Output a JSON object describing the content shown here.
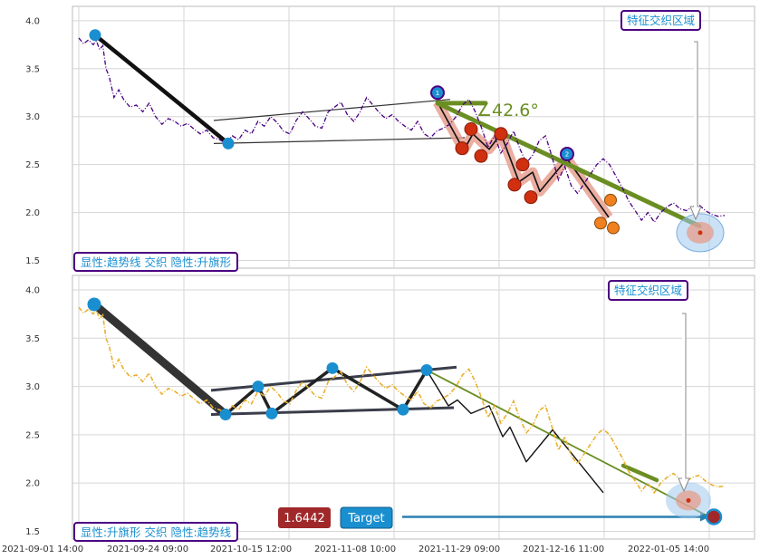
{
  "chart_data": [
    {
      "type": "line",
      "panel": "top",
      "ylim": [
        1.42,
        4.15
      ],
      "yticks": [
        1.5,
        2.0,
        2.5,
        3.0,
        3.5,
        4.0
      ],
      "ytick_labels": [
        "1.5",
        "2.0",
        "2.5",
        "3.0",
        "3.5",
        "4.0"
      ],
      "grid": true,
      "series_color": "#4b0082",
      "price": [
        [
          0,
          3.82
        ],
        [
          3,
          3.76
        ],
        [
          6,
          3.8
        ],
        [
          9,
          3.75
        ],
        [
          11,
          3.79
        ],
        [
          13,
          3.7
        ],
        [
          15,
          3.74
        ],
        [
          17,
          3.5
        ],
        [
          19,
          3.42
        ],
        [
          22,
          3.2
        ],
        [
          25,
          3.28
        ],
        [
          28,
          3.18
        ],
        [
          32,
          3.1
        ],
        [
          36,
          3.12
        ],
        [
          40,
          3.05
        ],
        [
          44,
          3.14
        ],
        [
          48,
          3.0
        ],
        [
          52,
          2.92
        ],
        [
          56,
          2.98
        ],
        [
          60,
          2.95
        ],
        [
          64,
          2.9
        ],
        [
          68,
          2.93
        ],
        [
          72,
          2.87
        ],
        [
          76,
          2.82
        ],
        [
          80,
          2.86
        ],
        [
          84,
          2.78
        ],
        [
          88,
          2.76
        ],
        [
          92,
          2.72
        ],
        [
          96,
          2.8
        ],
        [
          100,
          2.76
        ],
        [
          104,
          2.86
        ],
        [
          108,
          2.82
        ],
        [
          112,
          2.95
        ],
        [
          116,
          2.9
        ],
        [
          120,
          3.0
        ],
        [
          124,
          2.94
        ],
        [
          128,
          2.85
        ],
        [
          132,
          2.82
        ],
        [
          136,
          2.96
        ],
        [
          140,
          3.05
        ],
        [
          144,
          2.98
        ],
        [
          148,
          2.9
        ],
        [
          152,
          2.88
        ],
        [
          156,
          3.05
        ],
        [
          160,
          3.1
        ],
        [
          164,
          3.15
        ],
        [
          168,
          3.02
        ],
        [
          172,
          2.95
        ],
        [
          176,
          3.05
        ],
        [
          180,
          3.2
        ],
        [
          184,
          3.12
        ],
        [
          188,
          3.04
        ],
        [
          192,
          2.98
        ],
        [
          196,
          3.02
        ],
        [
          200,
          2.95
        ],
        [
          204,
          2.9
        ],
        [
          208,
          2.86
        ],
        [
          212,
          2.95
        ],
        [
          216,
          2.82
        ],
        [
          220,
          2.78
        ],
        [
          224,
          2.85
        ],
        [
          228,
          2.88
        ],
        [
          232,
          2.92
        ],
        [
          236,
          3.0
        ],
        [
          240,
          3.12
        ],
        [
          244,
          3.18
        ],
        [
          248,
          3.05
        ],
        [
          252,
          2.88
        ],
        [
          256,
          2.68
        ],
        [
          260,
          2.8
        ],
        [
          264,
          2.62
        ],
        [
          268,
          2.72
        ],
        [
          272,
          2.85
        ],
        [
          276,
          2.66
        ],
        [
          280,
          2.52
        ],
        [
          284,
          2.6
        ],
        [
          288,
          2.75
        ],
        [
          292,
          2.8
        ],
        [
          296,
          2.58
        ],
        [
          300,
          2.34
        ],
        [
          304,
          2.48
        ],
        [
          308,
          2.28
        ],
        [
          312,
          2.2
        ],
        [
          316,
          2.3
        ],
        [
          320,
          2.4
        ],
        [
          324,
          2.5
        ],
        [
          328,
          2.56
        ],
        [
          332,
          2.5
        ],
        [
          336,
          2.38
        ],
        [
          340,
          2.26
        ],
        [
          344,
          2.12
        ],
        [
          348,
          2.02
        ],
        [
          352,
          1.92
        ],
        [
          356,
          2.0
        ],
        [
          360,
          1.9
        ],
        [
          364,
          2.0
        ],
        [
          368,
          2.06
        ],
        [
          372,
          2.1
        ],
        [
          376,
          2.04
        ],
        [
          380,
          2.02
        ],
        [
          384,
          2.06
        ],
        [
          388,
          2.08
        ],
        [
          392,
          2.02
        ],
        [
          396,
          1.98
        ],
        [
          400,
          1.96
        ],
        [
          404,
          1.97
        ]
      ]
    },
    {
      "type": "line",
      "panel": "bottom",
      "ylim": [
        1.42,
        4.15
      ],
      "yticks": [
        1.5,
        2.0,
        2.5,
        3.0,
        3.5,
        4.0
      ],
      "ytick_labels": [
        "1.5",
        "2.0",
        "2.5",
        "3.0",
        "3.5",
        "4.0"
      ],
      "grid": true,
      "series_color": "#e8b030",
      "x_tick_labels": [
        "2021-09-01 14:00",
        "2021-09-24 09:00",
        "2021-10-15 12:00",
        "2021-11-08 10:00",
        "2021-11-29 09:00",
        "2021-12-16 11:00",
        "2022-01-05 14:00"
      ],
      "price": [
        [
          0,
          3.82
        ],
        [
          3,
          3.76
        ],
        [
          6,
          3.8
        ],
        [
          9,
          3.75
        ],
        [
          11,
          3.79
        ],
        [
          13,
          3.7
        ],
        [
          15,
          3.74
        ],
        [
          17,
          3.5
        ],
        [
          19,
          3.42
        ],
        [
          22,
          3.2
        ],
        [
          25,
          3.28
        ],
        [
          28,
          3.18
        ],
        [
          32,
          3.1
        ],
        [
          36,
          3.12
        ],
        [
          40,
          3.05
        ],
        [
          44,
          3.14
        ],
        [
          48,
          3.0
        ],
        [
          52,
          2.92
        ],
        [
          56,
          2.98
        ],
        [
          60,
          2.95
        ],
        [
          64,
          2.9
        ],
        [
          68,
          2.93
        ],
        [
          72,
          2.87
        ],
        [
          76,
          2.82
        ],
        [
          80,
          2.86
        ],
        [
          84,
          2.78
        ],
        [
          88,
          2.76
        ],
        [
          92,
          2.72
        ],
        [
          96,
          2.8
        ],
        [
          100,
          2.76
        ],
        [
          104,
          2.86
        ],
        [
          108,
          2.82
        ],
        [
          112,
          2.95
        ],
        [
          116,
          2.9
        ],
        [
          120,
          3.0
        ],
        [
          124,
          2.94
        ],
        [
          128,
          2.85
        ],
        [
          132,
          2.82
        ],
        [
          136,
          2.96
        ],
        [
          140,
          3.05
        ],
        [
          144,
          2.98
        ],
        [
          148,
          2.9
        ],
        [
          152,
          2.88
        ],
        [
          156,
          3.05
        ],
        [
          160,
          3.1
        ],
        [
          164,
          3.15
        ],
        [
          168,
          3.02
        ],
        [
          172,
          2.95
        ],
        [
          176,
          3.05
        ],
        [
          180,
          3.2
        ],
        [
          184,
          3.12
        ],
        [
          188,
          3.04
        ],
        [
          192,
          2.98
        ],
        [
          196,
          3.02
        ],
        [
          200,
          2.95
        ],
        [
          204,
          2.9
        ],
        [
          208,
          2.86
        ],
        [
          212,
          2.95
        ],
        [
          216,
          2.82
        ],
        [
          220,
          2.78
        ],
        [
          224,
          2.85
        ],
        [
          228,
          2.88
        ],
        [
          232,
          2.92
        ],
        [
          236,
          3.0
        ],
        [
          240,
          3.12
        ],
        [
          244,
          3.18
        ],
        [
          248,
          3.05
        ],
        [
          252,
          2.88
        ],
        [
          256,
          2.68
        ],
        [
          260,
          2.8
        ],
        [
          264,
          2.62
        ],
        [
          268,
          2.72
        ],
        [
          272,
          2.85
        ],
        [
          276,
          2.66
        ],
        [
          280,
          2.52
        ],
        [
          284,
          2.6
        ],
        [
          288,
          2.75
        ],
        [
          292,
          2.8
        ],
        [
          296,
          2.58
        ],
        [
          300,
          2.34
        ],
        [
          304,
          2.48
        ],
        [
          308,
          2.28
        ],
        [
          312,
          2.2
        ],
        [
          316,
          2.3
        ],
        [
          320,
          2.4
        ],
        [
          324,
          2.5
        ],
        [
          328,
          2.56
        ],
        [
          332,
          2.5
        ],
        [
          336,
          2.38
        ],
        [
          340,
          2.26
        ],
        [
          344,
          2.12
        ],
        [
          348,
          2.02
        ],
        [
          352,
          1.92
        ],
        [
          356,
          2.0
        ],
        [
          360,
          1.9
        ],
        [
          364,
          2.0
        ],
        [
          368,
          2.06
        ],
        [
          372,
          2.1
        ],
        [
          376,
          2.04
        ],
        [
          380,
          2.02
        ],
        [
          384,
          2.06
        ],
        [
          388,
          2.08
        ],
        [
          392,
          2.02
        ],
        [
          396,
          1.98
        ],
        [
          400,
          1.96
        ],
        [
          404,
          1.97
        ]
      ]
    }
  ],
  "top_panel": {
    "box_top_right": "特征交织区域",
    "box_bottom_left": "显性:趋势线 交织 隐性:升旗形",
    "angle_label": "∠42.6°",
    "colors": {
      "trend": "#6b8e23",
      "path": "#e8a090",
      "marker": "#d03010",
      "marker_orange": "#f08020",
      "pivot": "#1a8fd0"
    }
  },
  "bottom_panel": {
    "box_top_right": "特征交织区域",
    "box_bottom_left": "显性:升旗形 交织 隐性:趋势线",
    "price_pill": "1.6442",
    "target_pill": "Target",
    "colors": {
      "price_pill": "#a0282a",
      "target_pill": "#1a8fd0",
      "target_arrow": "#2a7fb0"
    }
  }
}
